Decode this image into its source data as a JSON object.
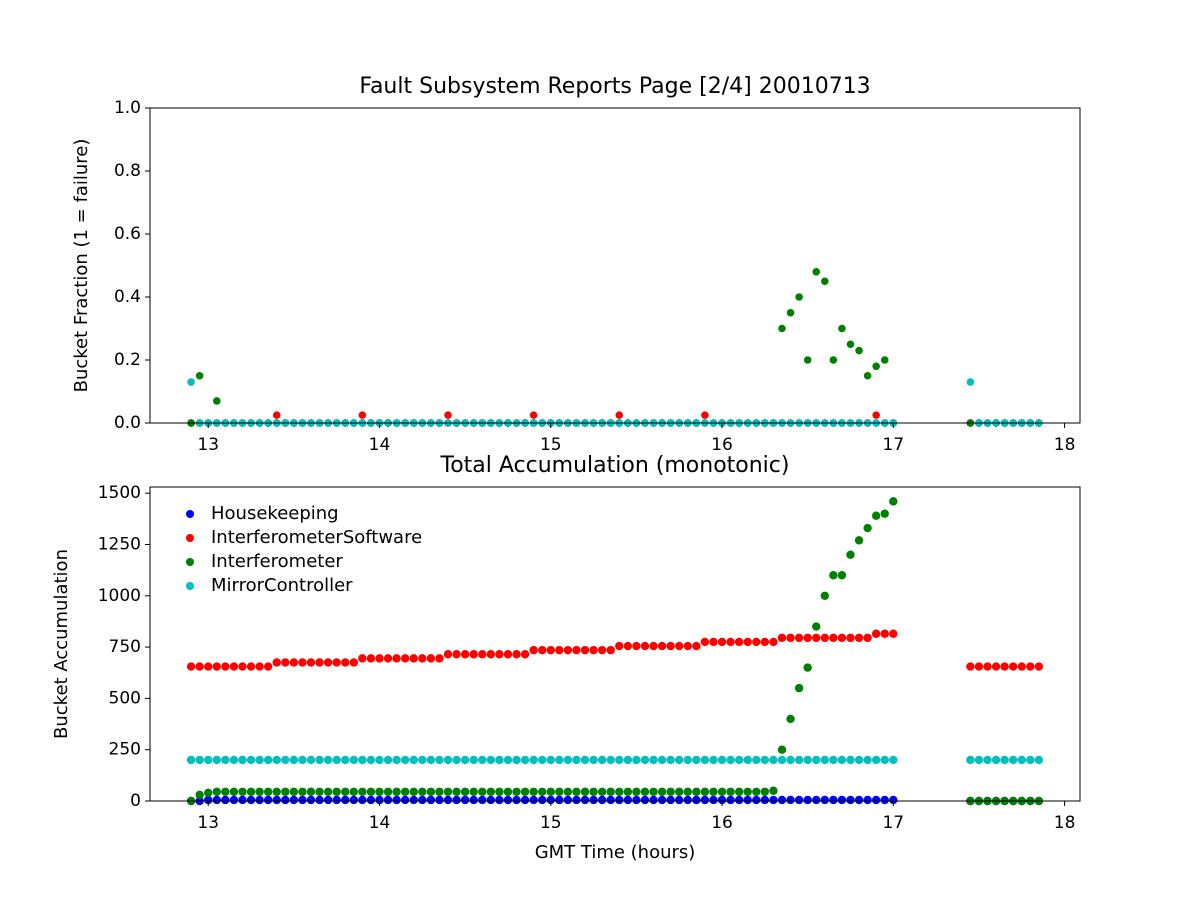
{
  "chart_data": [
    {
      "type": "scatter",
      "title": "Fault Subsystem Reports Page [2/4] 20010713",
      "y_label": "Bucket Fraction (1 = failure)",
      "xlim": [
        12.66,
        18.09
      ],
      "ylim": [
        0,
        1
      ],
      "xticks": [
        13,
        14,
        15,
        16,
        17,
        18
      ],
      "yticks": [
        {
          "value": 0,
          "label": "0.0"
        },
        0.2,
        0.4,
        0.6,
        0.8,
        {
          "value": 1,
          "label": "1.0"
        }
      ],
      "x": [
        12.9,
        12.95,
        13,
        13.05,
        13.1,
        13.15,
        13.2,
        13.25,
        13.3,
        13.35,
        13.4,
        13.45,
        13.5,
        13.55,
        13.6,
        13.65,
        13.7,
        13.75,
        13.8,
        13.85,
        13.9,
        13.95,
        14,
        14.05,
        14.1,
        14.15,
        14.2,
        14.25,
        14.3,
        14.35,
        14.4,
        14.45,
        14.5,
        14.55,
        14.6,
        14.65,
        14.7,
        14.75,
        14.8,
        14.85,
        14.9,
        14.95,
        15,
        15.05,
        15.1,
        15.15,
        15.2,
        15.25,
        15.3,
        15.35,
        15.4,
        15.45,
        15.5,
        15.55,
        15.6,
        15.65,
        15.7,
        15.75,
        15.8,
        15.85,
        15.9,
        15.95,
        16,
        16.05,
        16.1,
        16.15,
        16.2,
        16.25,
        16.3,
        16.35,
        16.4,
        16.45,
        16.5,
        16.55,
        16.6,
        16.65,
        16.7,
        16.75,
        16.8,
        16.85,
        16.9,
        16.95,
        17,
        17.45,
        17.5,
        17.55,
        17.6,
        17.65,
        17.7,
        17.75,
        17.8,
        17.85
      ],
      "series": [
        {
          "color": "#0000ff",
          "values": [
            0,
            0,
            0,
            0,
            0,
            0,
            0,
            0,
            0,
            0,
            0,
            0,
            0,
            0,
            0,
            0,
            0,
            0,
            0,
            0,
            0,
            0,
            0,
            0,
            0,
            0,
            0,
            0,
            0,
            0,
            0,
            0,
            0,
            0,
            0,
            0,
            0,
            0,
            0,
            0,
            0,
            0,
            0,
            0,
            0,
            0,
            0,
            0,
            0,
            0,
            0,
            0,
            0,
            0,
            0,
            0,
            0,
            0,
            0,
            0,
            0,
            0,
            0,
            0,
            0,
            0,
            0,
            0,
            0,
            0,
            0,
            0,
            0,
            0,
            0,
            0,
            0,
            0,
            0,
            0,
            0,
            0,
            0,
            0,
            0,
            0,
            0,
            0,
            0,
            0,
            0,
            0
          ]
        },
        {
          "color": "#ff0000",
          "values": [
            0,
            0,
            0,
            0,
            0,
            0,
            0,
            0,
            0,
            0,
            0.025,
            0,
            0,
            0,
            0,
            0,
            0,
            0,
            0,
            0,
            0.025,
            0,
            0,
            0,
            0,
            0,
            0,
            0,
            0,
            0,
            0.025,
            0,
            0,
            0,
            0,
            0,
            0,
            0,
            0,
            0,
            0.025,
            0,
            0,
            0,
            0,
            0,
            0,
            0,
            0,
            0,
            0.025,
            0,
            0,
            0,
            0,
            0,
            0,
            0,
            0,
            0,
            0.025,
            0,
            0,
            0,
            0,
            0,
            0,
            0,
            0,
            0,
            0,
            0,
            0,
            0,
            0,
            0,
            0,
            0,
            0,
            0,
            0.025,
            0,
            0,
            0,
            0,
            0,
            0,
            0,
            0,
            0,
            0,
            0
          ]
        },
        {
          "color": "#008000",
          "values": [
            0,
            0.15,
            0,
            0.07,
            0,
            0,
            0,
            0,
            0,
            0,
            0,
            0,
            0,
            0,
            0,
            0,
            0,
            0,
            0,
            0,
            0,
            0,
            0,
            0,
            0,
            0,
            0,
            0,
            0,
            0,
            0,
            0,
            0,
            0,
            0,
            0,
            0,
            0,
            0,
            0,
            0,
            0,
            0,
            0,
            0,
            0,
            0,
            0,
            0,
            0,
            0,
            0,
            0,
            0,
            0,
            0,
            0,
            0,
            0,
            0,
            0,
            0,
            0,
            0,
            0,
            0,
            0,
            0,
            0,
            0.3,
            0.35,
            0.4,
            0.2,
            0.48,
            0.45,
            0.2,
            0.3,
            0.25,
            0.23,
            0.15,
            0.18,
            0.2,
            0,
            0,
            0,
            0,
            0,
            0,
            0,
            0,
            0,
            0
          ]
        },
        {
          "color": "#00bfbf",
          "values": [
            0.13,
            0,
            0,
            0,
            0,
            0,
            0,
            0,
            0,
            0,
            0,
            0,
            0,
            0,
            0,
            0,
            0,
            0,
            0,
            0,
            0,
            0,
            0,
            0,
            0,
            0,
            0,
            0,
            0,
            0,
            0,
            0,
            0,
            0,
            0,
            0,
            0,
            0,
            0,
            0,
            0,
            0,
            0,
            0,
            0,
            0,
            0,
            0,
            0,
            0,
            0,
            0,
            0,
            0,
            0,
            0,
            0,
            0,
            0,
            0,
            0,
            0,
            0,
            0,
            0,
            0,
            0,
            0,
            0,
            0,
            0,
            0,
            0,
            0,
            0,
            0,
            0,
            0,
            0,
            0,
            0,
            0,
            0,
            0.13,
            0,
            0,
            0,
            0,
            0,
            0,
            0,
            0
          ]
        }
      ]
    },
    {
      "type": "scatter",
      "title": "Total Accumulation (monotonic)",
      "x_label": "GMT Time (hours)",
      "y_label": "Bucket Accumulation",
      "xlim": [
        12.66,
        18.09
      ],
      "ylim": [
        0,
        1530
      ],
      "xticks": [
        13,
        14,
        15,
        16,
        17,
        18
      ],
      "yticks": [
        0,
        250,
        500,
        750,
        1000,
        1250,
        1500
      ],
      "legend": "upper left",
      "x": [
        12.9,
        12.95,
        13,
        13.05,
        13.1,
        13.15,
        13.2,
        13.25,
        13.3,
        13.35,
        13.4,
        13.45,
        13.5,
        13.55,
        13.6,
        13.65,
        13.7,
        13.75,
        13.8,
        13.85,
        13.9,
        13.95,
        14,
        14.05,
        14.1,
        14.15,
        14.2,
        14.25,
        14.3,
        14.35,
        14.4,
        14.45,
        14.5,
        14.55,
        14.6,
        14.65,
        14.7,
        14.75,
        14.8,
        14.85,
        14.9,
        14.95,
        15,
        15.05,
        15.1,
        15.15,
        15.2,
        15.25,
        15.3,
        15.35,
        15.4,
        15.45,
        15.5,
        15.55,
        15.6,
        15.65,
        15.7,
        15.75,
        15.8,
        15.85,
        15.9,
        15.95,
        16,
        16.05,
        16.1,
        16.15,
        16.2,
        16.25,
        16.3,
        16.35,
        16.4,
        16.45,
        16.5,
        16.55,
        16.6,
        16.65,
        16.7,
        16.75,
        16.8,
        16.85,
        16.9,
        16.95,
        17,
        17.45,
        17.5,
        17.55,
        17.6,
        17.65,
        17.7,
        17.75,
        17.8,
        17.85
      ],
      "series": [
        {
          "name": "Housekeeping",
          "color": "#0000ff",
          "values": [
            0,
            0,
            5,
            5,
            5,
            5,
            5,
            5,
            5,
            5,
            5,
            5,
            5,
            5,
            5,
            5,
            5,
            5,
            5,
            5,
            5,
            5,
            5,
            5,
            5,
            5,
            5,
            5,
            5,
            5,
            5,
            5,
            5,
            5,
            5,
            5,
            5,
            5,
            5,
            5,
            5,
            5,
            5,
            5,
            5,
            5,
            5,
            5,
            5,
            5,
            5,
            5,
            5,
            5,
            5,
            5,
            5,
            5,
            5,
            5,
            5,
            5,
            5,
            5,
            5,
            5,
            5,
            5,
            5,
            5,
            5,
            5,
            5,
            5,
            5,
            5,
            5,
            5,
            5,
            5,
            5,
            5,
            5,
            0,
            0,
            0,
            0,
            0,
            0,
            0,
            0,
            0
          ]
        },
        {
          "name": "InterferometerSoftware",
          "color": "#ff0000",
          "values": [
            655,
            655,
            655,
            655,
            655,
            655,
            655,
            655,
            655,
            655,
            675,
            675,
            675,
            675,
            675,
            675,
            675,
            675,
            675,
            675,
            695,
            695,
            695,
            695,
            695,
            695,
            695,
            695,
            695,
            695,
            715,
            715,
            715,
            715,
            715,
            715,
            715,
            715,
            715,
            715,
            735,
            735,
            735,
            735,
            735,
            735,
            735,
            735,
            735,
            735,
            755,
            755,
            755,
            755,
            755,
            755,
            755,
            755,
            755,
            755,
            775,
            775,
            775,
            775,
            775,
            775,
            775,
            775,
            775,
            795,
            795,
            795,
            795,
            795,
            795,
            795,
            795,
            795,
            795,
            795,
            815,
            815,
            815,
            655,
            655,
            655,
            655,
            655,
            655,
            655,
            655,
            655
          ]
        },
        {
          "name": "Interferometer",
          "color": "#008000",
          "values": [
            0,
            30,
            40,
            45,
            45,
            45,
            45,
            45,
            45,
            45,
            45,
            45,
            45,
            45,
            45,
            45,
            45,
            45,
            45,
            45,
            45,
            45,
            45,
            45,
            45,
            45,
            45,
            45,
            45,
            45,
            45,
            45,
            45,
            45,
            45,
            45,
            45,
            45,
            45,
            45,
            45,
            45,
            45,
            45,
            45,
            45,
            45,
            45,
            45,
            45,
            45,
            45,
            45,
            45,
            45,
            45,
            45,
            45,
            45,
            45,
            45,
            45,
            45,
            45,
            45,
            45,
            45,
            45,
            50,
            250,
            400,
            550,
            650,
            850,
            1000,
            1100,
            1100,
            1200,
            1270,
            1330,
            1390,
            1400,
            1460,
            0,
            0,
            0,
            0,
            0,
            0,
            0,
            0,
            0
          ]
        },
        {
          "name": "MirrorController",
          "color": "#00bfbf",
          "values": [
            200,
            200,
            200,
            200,
            200,
            200,
            200,
            200,
            200,
            200,
            200,
            200,
            200,
            200,
            200,
            200,
            200,
            200,
            200,
            200,
            200,
            200,
            200,
            200,
            200,
            200,
            200,
            200,
            200,
            200,
            200,
            200,
            200,
            200,
            200,
            200,
            200,
            200,
            200,
            200,
            200,
            200,
            200,
            200,
            200,
            200,
            200,
            200,
            200,
            200,
            200,
            200,
            200,
            200,
            200,
            200,
            200,
            200,
            200,
            200,
            200,
            200,
            200,
            200,
            200,
            200,
            200,
            200,
            200,
            200,
            200,
            200,
            200,
            200,
            200,
            200,
            200,
            200,
            200,
            200,
            200,
            200,
            200,
            200,
            200,
            200,
            200,
            200,
            200,
            200,
            200,
            200
          ]
        }
      ]
    }
  ]
}
